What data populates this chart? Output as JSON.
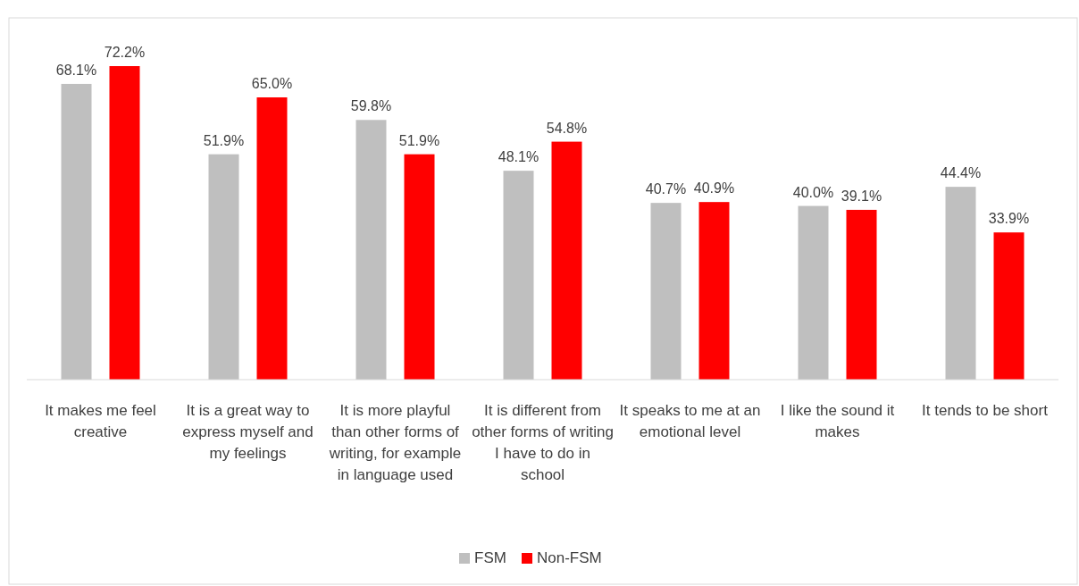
{
  "chart_data": {
    "type": "bar",
    "categories": [
      "It makes me feel creative",
      "It is a great way to express myself and my feelings",
      "It is more playful than other forms of writing, for example in language used",
      "It is different from other forms of writing I have to do in school",
      "It speaks to me at an emotional level",
      "I like the sound it makes",
      "It tends to be short"
    ],
    "series": [
      {
        "name": "FSM",
        "color": "#bfbfbf",
        "values": [
          68.1,
          51.9,
          59.8,
          48.1,
          40.7,
          40.0,
          44.4
        ],
        "value_labels": [
          "68.1%",
          "51.9%",
          "59.8%",
          "48.1%",
          "40.7%",
          "40.0%",
          "44.4%"
        ]
      },
      {
        "name": "Non-FSM",
        "color": "#ff0000",
        "values": [
          72.2,
          65.0,
          51.9,
          54.8,
          40.9,
          39.1,
          33.9
        ],
        "value_labels": [
          "72.2%",
          "65.0%",
          "51.9%",
          "54.8%",
          "40.9%",
          "39.1%",
          "33.9%"
        ]
      }
    ],
    "legend": "bottom",
    "grid": false
  }
}
